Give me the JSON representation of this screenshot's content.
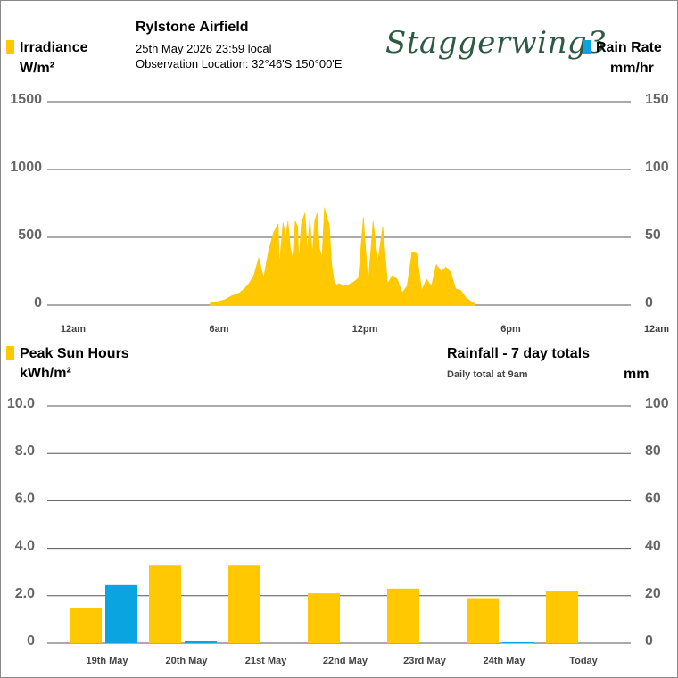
{
  "header": {
    "station": "Rylstone Airfield",
    "datetime": "25th May 2026  23:59 local",
    "location": "Observation Location: 32°46'S 150°00'E",
    "logo_text": "Staggerwing3"
  },
  "colors": {
    "irradiance": "#ffc800",
    "rain": "#0aa5e0",
    "grid": "#555555",
    "tick_text": "#666666",
    "logo": "#2e5a43"
  },
  "chart_data": [
    {
      "type": "area",
      "title": "",
      "left_axis": {
        "label": "Irradiance",
        "unit": "W/m²",
        "ylim": [
          0,
          1500
        ],
        "ticks": [
          "0",
          "500",
          "1000",
          "1500"
        ]
      },
      "right_axis": {
        "label": "Rain Rate",
        "unit": "mm/hr",
        "ylim": [
          0,
          150
        ],
        "ticks": [
          "0",
          "50",
          "100",
          "150"
        ]
      },
      "x_ticks": [
        "12am",
        "6am",
        "12pm",
        "6pm",
        "12am"
      ],
      "xlim_hours": [
        0,
        24
      ],
      "grid": true,
      "series": [
        {
          "name": "Irradiance",
          "color": "#ffc800",
          "x_hours": [
            6.7,
            7.0,
            7.3,
            7.6,
            7.9,
            8.1,
            8.3,
            8.5,
            8.7,
            8.9,
            9.1,
            9.3,
            9.5,
            9.55,
            9.7,
            9.8,
            9.9,
            10.0,
            10.1,
            10.2,
            10.3,
            10.35,
            10.45,
            10.6,
            10.7,
            10.8,
            10.9,
            11.0,
            11.1,
            11.2,
            11.3,
            11.4,
            11.5,
            11.6,
            11.7,
            11.8,
            11.9,
            12.0,
            12.2,
            12.4,
            12.6,
            12.8,
            13.0,
            13.2,
            13.4,
            13.6,
            13.8,
            14.0,
            14.2,
            14.4,
            14.6,
            14.8,
            15.0,
            15.2,
            15.4,
            15.6,
            15.8,
            16.0,
            16.2,
            16.4,
            16.6,
            16.8,
            17.0,
            17.2,
            17.4,
            17.6
          ],
          "values": [
            15,
            25,
            40,
            70,
            90,
            120,
            160,
            220,
            350,
            200,
            400,
            530,
            600,
            300,
            610,
            500,
            620,
            420,
            350,
            620,
            580,
            330,
            600,
            680,
            400,
            650,
            380,
            620,
            680,
            420,
            350,
            720,
            640,
            600,
            300,
            170,
            150,
            160,
            140,
            150,
            170,
            200,
            650,
            160,
            620,
            330,
            580,
            160,
            220,
            190,
            90,
            140,
            390,
            380,
            110,
            190,
            140,
            300,
            250,
            280,
            240,
            120,
            110,
            60,
            30,
            10
          ]
        }
      ]
    },
    {
      "type": "bar",
      "title": "Rainfall - 7 day totals",
      "subtitle": "Daily total at 9am",
      "left_axis": {
        "label": "Peak Sun Hours",
        "unit": "kWh/m²",
        "ylim": [
          0,
          10
        ],
        "ticks": [
          "0",
          "2.0",
          "4.0",
          "6.0",
          "8.0",
          "10.0"
        ]
      },
      "right_axis": {
        "label": "",
        "unit": "mm",
        "ylim": [
          0,
          100
        ],
        "ticks": [
          "0",
          "20",
          "40",
          "60",
          "80",
          "100"
        ]
      },
      "categories": [
        "19th May",
        "20th May",
        "21st May",
        "22nd May",
        "23rd May",
        "24th May",
        "Today"
      ],
      "grid": true,
      "series": [
        {
          "name": "Peak Sun Hours",
          "color": "#ffc800",
          "values": [
            1.5,
            3.3,
            3.3,
            2.1,
            2.3,
            1.9,
            2.2
          ]
        },
        {
          "name": "Rainfall",
          "color": "#0aa5e0",
          "values": [
            24.5,
            0.8,
            0,
            0,
            0,
            0.4,
            0
          ]
        }
      ]
    }
  ]
}
